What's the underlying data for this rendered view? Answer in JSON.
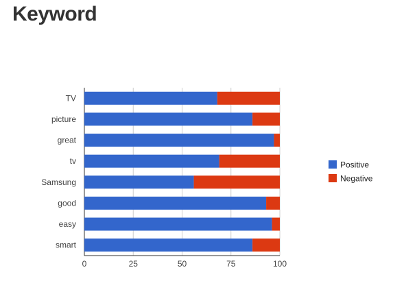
{
  "page": {
    "title": "Keyword"
  },
  "chart_data": {
    "type": "bar",
    "orientation": "horizontal",
    "stacked": true,
    "categories": [
      "TV",
      "picture",
      "great",
      "tv",
      "Samsung",
      "good",
      "easy",
      "smart"
    ],
    "series": [
      {
        "name": "Positive",
        "values": [
          68,
          86,
          97,
          69,
          56,
          93,
          96,
          86
        ],
        "color": "#3366cc"
      },
      {
        "name": "Negative",
        "values": [
          32,
          14,
          3,
          31,
          44,
          7,
          4,
          14
        ],
        "color": "#dc3912"
      }
    ],
    "xlim": [
      0,
      100
    ],
    "xticks": [
      "0",
      "25",
      "50",
      "75",
      "100"
    ],
    "title": "",
    "xlabel": "",
    "ylabel": "",
    "grid": true,
    "legend_position": "right"
  }
}
